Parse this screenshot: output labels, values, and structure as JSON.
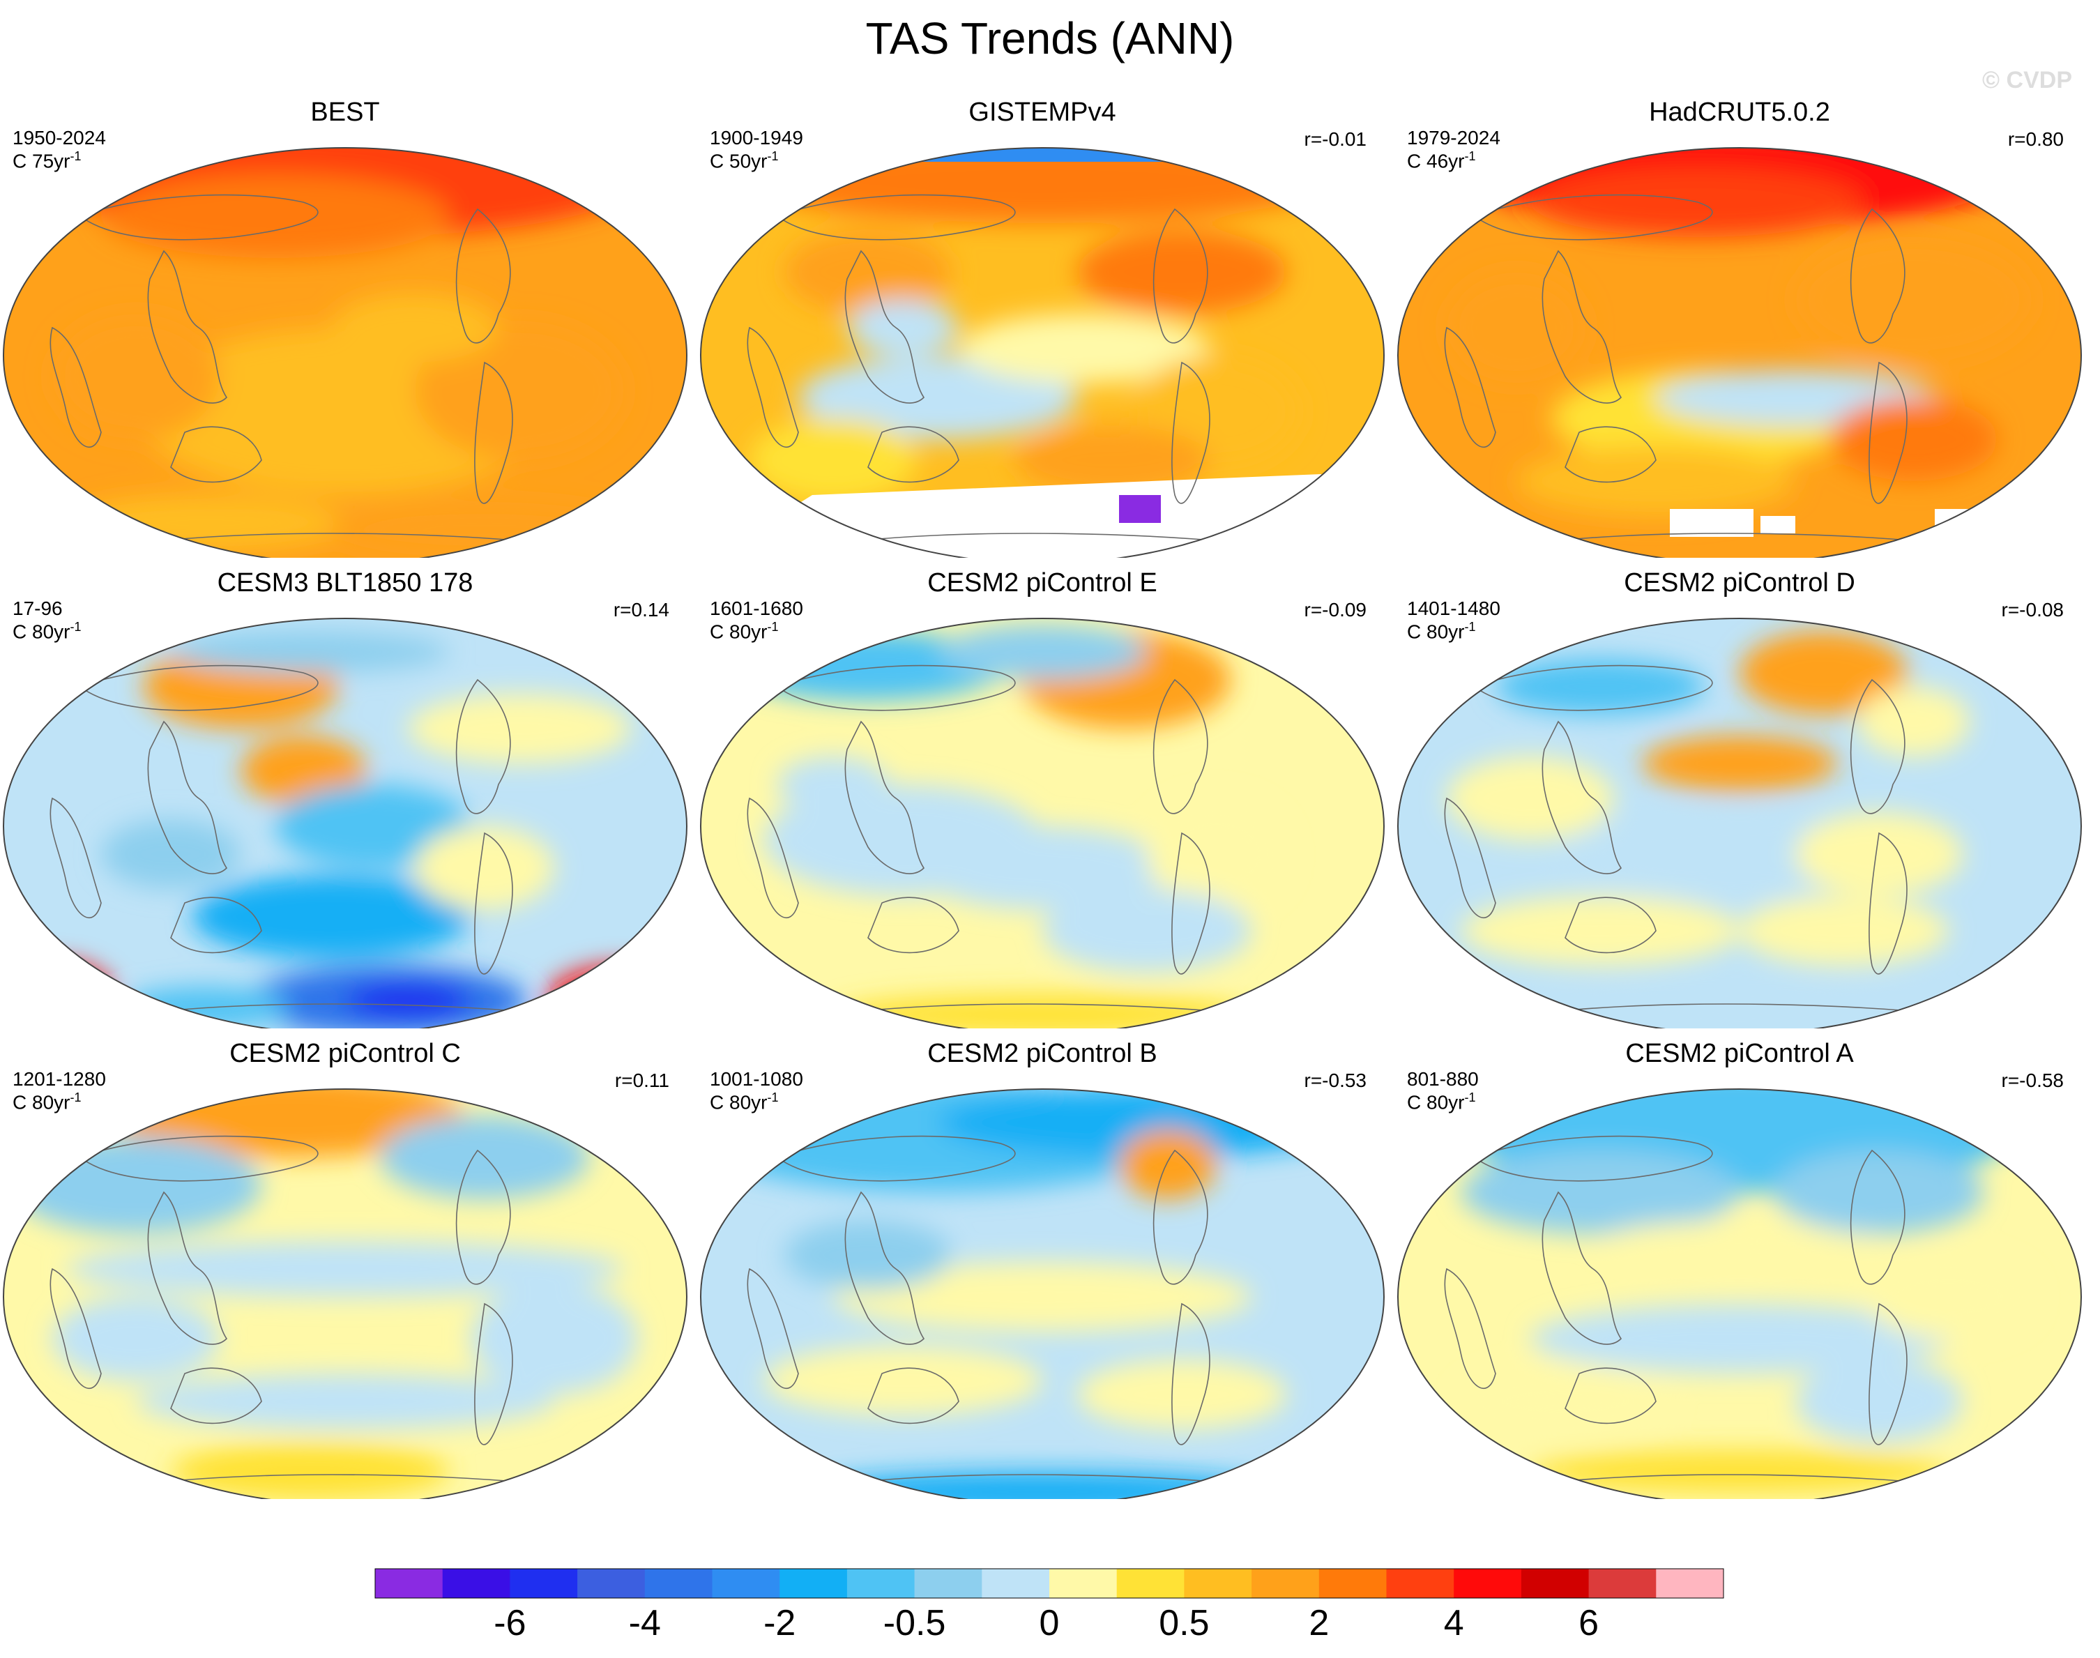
{
  "title": "TAS Trends (ANN)",
  "watermark": "© CVDP",
  "chart_data": {
    "type": "heatmap",
    "projection": "Robinson",
    "variable": "TAS",
    "season": "ANN",
    "panels": [
      {
        "title": "BEST",
        "period": "1950-2024",
        "units_prefix": "C 75yr",
        "units_exp": "-1",
        "r": "",
        "pattern": "warm_strong",
        "missing": []
      },
      {
        "title": "GISTEMPv4",
        "period": "1900-1949",
        "units_prefix": "C 50yr",
        "units_exp": "-1",
        "r": "r=-0.01",
        "pattern": "warm_mild",
        "missing": [
          "antarctic"
        ]
      },
      {
        "title": "HadCRUT5.0.2",
        "period": "1979-2024",
        "units_prefix": "C 46yr",
        "units_exp": "-1",
        "r": "r=0.80",
        "pattern": "warm_strong_arctic",
        "missing": [
          "antarctic_patches"
        ]
      },
      {
        "title": "CESM3 BLT1850 178",
        "period": "17-96",
        "units_prefix": "C 80yr",
        "units_exp": "-1",
        "r": "r=0.14",
        "pattern": "cool_southern",
        "missing": []
      },
      {
        "title": "CESM2 piControl E",
        "period": "1601-1680",
        "units_prefix": "C 80yr",
        "units_exp": "-1",
        "r": "r=-0.09",
        "pattern": "neutral_warm_na",
        "missing": []
      },
      {
        "title": "CESM2 piControl D",
        "period": "1401-1480",
        "units_prefix": "C 80yr",
        "units_exp": "-1",
        "r": "r=-0.08",
        "pattern": "neutral_cool",
        "missing": []
      },
      {
        "title": "CESM2 piControl C",
        "period": "1201-1280",
        "units_prefix": "C 80yr",
        "units_exp": "-1",
        "r": "r=0.11",
        "pattern": "neutral_warm_arctic",
        "missing": []
      },
      {
        "title": "CESM2 piControl B",
        "period": "1001-1080",
        "units_prefix": "C 80yr",
        "units_exp": "-1",
        "r": "r=-0.53",
        "pattern": "cool_north",
        "missing": []
      },
      {
        "title": "CESM2 piControl A",
        "period": "801-880",
        "units_prefix": "C 80yr",
        "units_exp": "-1",
        "r": "r=-0.58",
        "pattern": "cool_north_mild",
        "missing": []
      }
    ],
    "colorbar": {
      "colors": [
        "#8A2BE2",
        "#3A0FE6",
        "#1F2FF0",
        "#3C5FE0",
        "#2F74EA",
        "#2F8DF2",
        "#12AFF5",
        "#4FC3F4",
        "#8DCFEE",
        "#BFE3F7",
        "#FFF9A8",
        "#FFE236",
        "#FFBE21",
        "#FFA11A",
        "#FF7A0A",
        "#FF4010",
        "#FF0A0A",
        "#D10000",
        "#DC3B3B",
        "#FFB6C0"
      ],
      "tick_labels": [
        "-6",
        "-4",
        "-2",
        "-0.5",
        "0",
        "0.5",
        "2",
        "4",
        "6"
      ],
      "tick_boundaries": [
        2,
        4,
        6,
        8,
        10,
        12,
        14,
        16,
        18
      ]
    }
  }
}
